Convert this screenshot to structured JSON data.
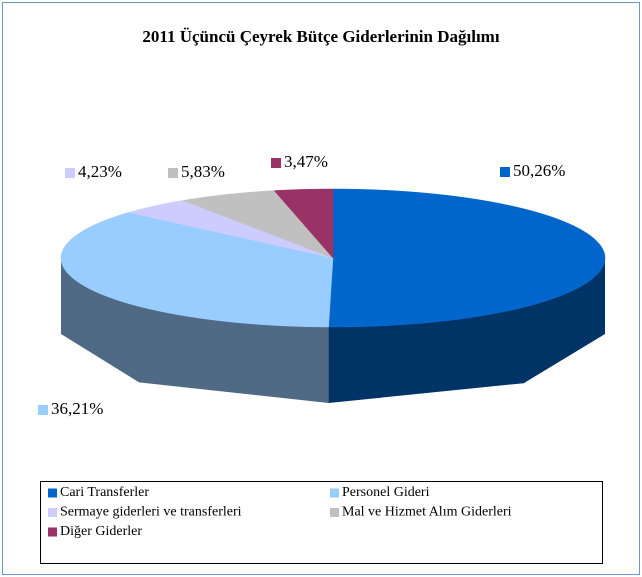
{
  "chart_data": {
    "type": "pie3d",
    "title": "2011 Üçüncü Çeyrek Bütçe Giderlerinin Dağılımı",
    "categories": [
      "Cari Transferler",
      "Personel Gideri",
      "Sermaye giderleri ve transferleri",
      "Mal ve Hizmet Alım Giderleri",
      "Diğer Giderler"
    ],
    "values": [
      50.26,
      36.21,
      4.23,
      5.83,
      3.47
    ],
    "value_labels": [
      "50,26%",
      "36,21%",
      "4,23%",
      "5,83%",
      "3,47%"
    ],
    "colors": [
      "#0066cc",
      "#99ccff",
      "#ccccff",
      "#c0c0c0",
      "#993366"
    ],
    "legend": "bottom"
  }
}
